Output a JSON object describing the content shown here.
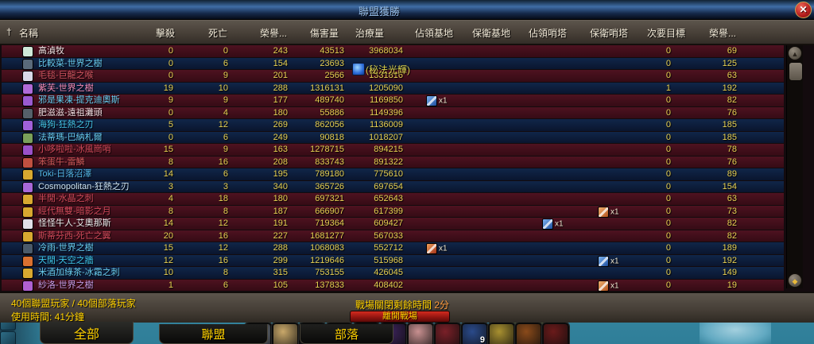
{
  "window": {
    "title": "聯盟獲勝",
    "close_label": "✕",
    "header_icon_glyph": "†"
  },
  "columns": {
    "name": "名稱",
    "kills": "擊殺",
    "deaths": "死亡",
    "honor_kills": "榮譽...",
    "damage": "傷害量",
    "healing": "治療量",
    "bases_assaulted": "佔領基地",
    "bases_defended": "保衛基地",
    "towers_assaulted": "佔領哨塔",
    "towers_defended": "保衛哨塔",
    "secondary": "次要目標",
    "honor": "榮譽..."
  },
  "rows": [
    {
      "name": "高湞牧",
      "faction": "horde",
      "name_color": "#f4e8e8",
      "icon_color": "#cfe8d8",
      "kills": "0",
      "deaths": "0",
      "honor_kills": "243",
      "damage": "43513",
      "healing": "3968034",
      "ba": null,
      "ta": null,
      "td": null,
      "secondary": "0",
      "honor": "69"
    },
    {
      "name": "比較菜-世界之樹",
      "faction": "alliance",
      "name_color": "#69ccf0",
      "icon_color": "#5a6a7a",
      "kills": "0",
      "deaths": "6",
      "honor_kills": "154",
      "damage": "23693",
      "healing": "",
      "ba": null,
      "ta": null,
      "td": null,
      "secondary": "0",
      "honor": "125"
    },
    {
      "name": "毛毯-巨龍之喉",
      "faction": "horde",
      "name_color": "#d05560",
      "icon_color": "#d8d8e8",
      "kills": "0",
      "deaths": "9",
      "honor_kills": "201",
      "damage": "2566",
      "healing": "1331816",
      "ba": null,
      "ta": null,
      "td": null,
      "secondary": "0",
      "honor": "63"
    },
    {
      "name": "紫芙-世界之樹",
      "faction": "alliance",
      "name_color": "#f58cba",
      "icon_color": "#b06ad8",
      "kills": "19",
      "deaths": "10",
      "honor_kills": "288",
      "damage": "1316131",
      "healing": "1205090",
      "ba": null,
      "ta": null,
      "td": null,
      "secondary": "1",
      "honor": "192"
    },
    {
      "name": "邪是果凍-提克迪奧斯",
      "faction": "horde",
      "name_color": "#69ccf0",
      "icon_color": "#9a5ad0",
      "kills": "9",
      "deaths": "9",
      "honor_kills": "177",
      "damage": "489740",
      "healing": "1169850",
      "ba": {
        "color": "blue",
        "label": "x1"
      },
      "ta": null,
      "td": null,
      "secondary": "0",
      "honor": "82"
    },
    {
      "name": "肥滋滋-遠祖灘頭",
      "faction": "horde",
      "name_color": "#f0dce0",
      "icon_color": "#55606a",
      "kills": "0",
      "deaths": "4",
      "honor_kills": "180",
      "damage": "55886",
      "healing": "1149396",
      "ba": null,
      "ta": null,
      "td": null,
      "secondary": "0",
      "honor": "76"
    },
    {
      "name": "海狗-狂熱之刃",
      "faction": "alliance",
      "name_color": "#45c5e8",
      "icon_color": "#a060d8",
      "kills": "5",
      "deaths": "12",
      "honor_kills": "269",
      "damage": "862056",
      "healing": "1136009",
      "ba": null,
      "ta": null,
      "td": null,
      "secondary": "0",
      "honor": "185"
    },
    {
      "name": "法蒂瑪-巴納札爾",
      "faction": "alliance",
      "name_color": "#69ccf0",
      "icon_color": "#7aa05a",
      "kills": "0",
      "deaths": "6",
      "honor_kills": "249",
      "damage": "90818",
      "healing": "1018207",
      "ba": null,
      "ta": null,
      "td": null,
      "secondary": "0",
      "honor": "185"
    },
    {
      "name": "小哆啦啦-冰風崗哨",
      "faction": "horde",
      "name_color": "#d04a5a",
      "icon_color": "#9a50c8",
      "kills": "15",
      "deaths": "9",
      "honor_kills": "163",
      "damage": "1278715",
      "healing": "894215",
      "ba": null,
      "ta": null,
      "td": null,
      "secondary": "0",
      "honor": "78"
    },
    {
      "name": "笨蛋牛-雷鱗",
      "faction": "horde",
      "name_color": "#d05a5a",
      "icon_color": "#c05040",
      "kills": "8",
      "deaths": "16",
      "honor_kills": "208",
      "damage": "833743",
      "healing": "891322",
      "ba": null,
      "ta": null,
      "td": null,
      "secondary": "0",
      "honor": "76"
    },
    {
      "name": "Toki-日落沼澤",
      "faction": "alliance",
      "name_color": "#55b8e8",
      "icon_color": "#d8a830",
      "kills": "14",
      "deaths": "6",
      "honor_kills": "195",
      "damage": "789180",
      "healing": "775610",
      "ba": null,
      "ta": null,
      "td": null,
      "secondary": "0",
      "honor": "89"
    },
    {
      "name": "Cosmopolitan-狂熱之刃",
      "faction": "alliance",
      "name_color": "#cfe6f5",
      "icon_color": "#a868d8",
      "kills": "3",
      "deaths": "3",
      "honor_kills": "340",
      "damage": "365726",
      "healing": "697654",
      "ba": null,
      "ta": null,
      "td": null,
      "secondary": "0",
      "honor": "154"
    },
    {
      "name": "半閒-水晶之刺",
      "faction": "horde",
      "name_color": "#d04a5a",
      "icon_color": "#d8a830",
      "kills": "4",
      "deaths": "18",
      "honor_kills": "180",
      "damage": "697321",
      "healing": "652643",
      "ba": null,
      "ta": null,
      "td": null,
      "secondary": "0",
      "honor": "63"
    },
    {
      "name": "經代無雙-暗影之月",
      "faction": "horde",
      "name_color": "#d04a5a",
      "icon_color": "#d8a830",
      "kills": "8",
      "deaths": "8",
      "honor_kills": "187",
      "damage": "666907",
      "healing": "617399",
      "ba": null,
      "ta": null,
      "td": {
        "color": "orange",
        "label": "x1"
      },
      "secondary": "0",
      "honor": "73"
    },
    {
      "name": "怪怪牛人-艾奧那斯",
      "faction": "horde",
      "name_color": "#eeeeee",
      "icon_color": "#e0e0e8",
      "kills": "14",
      "deaths": "12",
      "honor_kills": "191",
      "damage": "719364",
      "healing": "609427",
      "ba": null,
      "ta": {
        "color": "blue",
        "label": "x1"
      },
      "td": null,
      "secondary": "0",
      "honor": "82"
    },
    {
      "name": "斯蒂芬西-死亡之翼",
      "faction": "horde",
      "name_color": "#d04a5a",
      "icon_color": "#d8a830",
      "kills": "20",
      "deaths": "16",
      "honor_kills": "227",
      "damage": "1681277",
      "healing": "567033",
      "ba": null,
      "ta": null,
      "td": null,
      "secondary": "0",
      "honor": "82"
    },
    {
      "name": "冷雨-世界之樹",
      "faction": "alliance",
      "name_color": "#69ccf0",
      "icon_color": "#4a5a6a",
      "kills": "15",
      "deaths": "12",
      "honor_kills": "288",
      "damage": "1068083",
      "healing": "552712",
      "ba": {
        "color": "red",
        "label": "x1"
      },
      "ta": null,
      "td": null,
      "secondary": "0",
      "honor": "189"
    },
    {
      "name": "天閒-天空之牆",
      "faction": "alliance",
      "name_color": "#3fc7eb",
      "icon_color": "#d87030",
      "kills": "12",
      "deaths": "16",
      "honor_kills": "299",
      "damage": "1219646",
      "healing": "515968",
      "ba": null,
      "ta": null,
      "td": {
        "color": "blue",
        "label": "x1"
      },
      "secondary": "0",
      "honor": "192"
    },
    {
      "name": "米酒加綠茶-冰霜之刺",
      "faction": "alliance",
      "name_color": "#69ccf0",
      "icon_color": "#d8a830",
      "kills": "10",
      "deaths": "8",
      "honor_kills": "315",
      "damage": "753155",
      "healing": "426045",
      "ba": null,
      "ta": null,
      "td": null,
      "secondary": "0",
      "honor": "149"
    },
    {
      "name": "紗洛-世界之樹",
      "faction": "horde",
      "name_color": "#c79ce6",
      "icon_color": "#b060d0",
      "kills": "1",
      "deaths": "6",
      "honor_kills": "105",
      "damage": "137833",
      "healing": "408402",
      "ba": null,
      "ta": null,
      "td": {
        "color": "orange",
        "label": "x1"
      },
      "secondary": "0",
      "honor": "19"
    }
  ],
  "cast_overlay": {
    "text": "(秘法光輝)",
    "icon": "arcane-spell-icon"
  },
  "footer": {
    "players": "40個聯盟玩家 / 40個部落玩家",
    "elapsed": "使用時間: 41分鐘",
    "closing_label": "戰場關閉剩餘時間 ",
    "closing_value": "2分",
    "leave_button": "離開戰場"
  },
  "tabs": [
    {
      "label": "全部",
      "active": true
    },
    {
      "label": "聯盟",
      "active": false
    },
    {
      "label": "部落",
      "active": false
    }
  ],
  "actionbar": {
    "slots": [
      {
        "color": "#8a93a3"
      },
      {
        "color": "#c9a86a"
      },
      {
        "color": "#1e1e26"
      },
      {
        "color": "#8a2a2a"
      },
      {
        "color": "#a8862a"
      },
      {
        "color": "#3a2258"
      },
      {
        "color": "#c89090"
      },
      {
        "color": "#7a2028"
      },
      {
        "color": "#2a4a8a",
        "count": "9"
      },
      {
        "color": "#a89030"
      },
      {
        "color": "#8a4a1a"
      },
      {
        "color": "#6a1a1a"
      }
    ]
  },
  "colors": {
    "horde_row": "#4e1220",
    "alliance_row": "#102649",
    "number_text": "#e6d052",
    "footer_text": "#ffd100",
    "closing_value_text": "#ff9b3c",
    "title_text": "#9cc5f2"
  }
}
